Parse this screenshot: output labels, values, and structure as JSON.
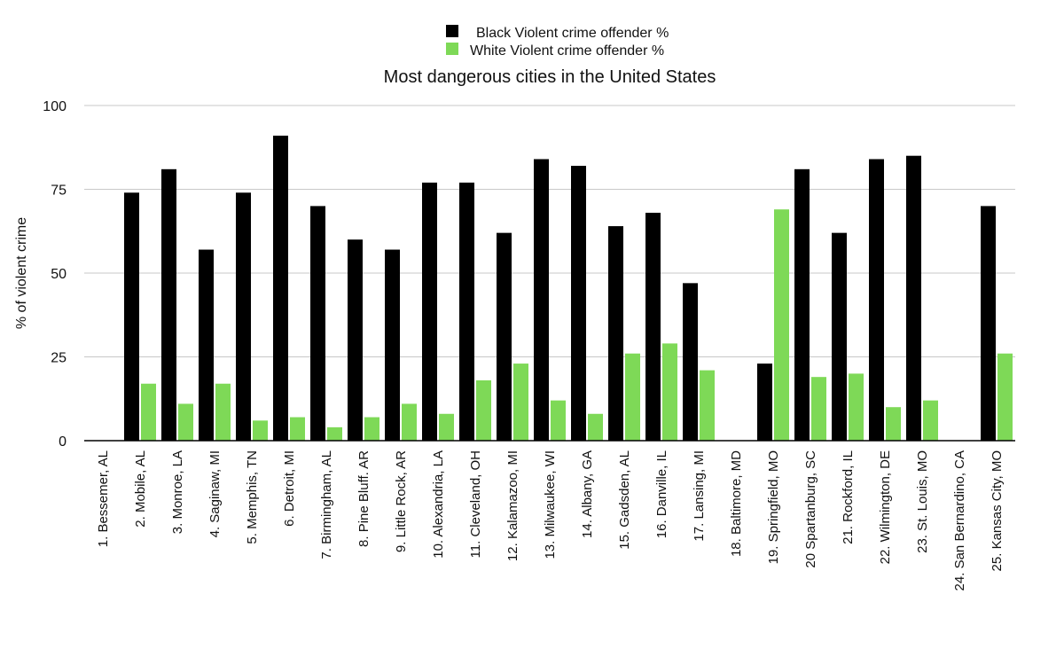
{
  "chart_data": {
    "type": "bar",
    "title": "Most dangerous cities in the United States",
    "xlabel": "",
    "ylabel": "% of violent crime",
    "ylim": [
      0,
      100
    ],
    "yticks": [
      "0",
      "25",
      "50",
      "75",
      "100"
    ],
    "grid": true,
    "legend_position": "top-center",
    "categories": [
      "1. Bessemer, AL",
      "2. Mobile, AL",
      "3. Monroe, LA",
      "4. Saginaw, MI",
      "5. Memphis, TN",
      "6. Detroit, MI",
      "7. Birmingham, AL",
      "8. Pine Bluff. AR",
      "9. Little Rock, AR",
      "10. Alexandria, LA",
      "11. Cleveland, OH",
      "12. Kalamazoo, MI",
      "13. Milwaukee, WI",
      "14. Albany, GA",
      "15. Gadsden, AL",
      "16. Danville, IL",
      "17. Lansing, MI",
      "18. Baltimore, MD",
      "19. Springfield, MO",
      "20 Spartanburg, SC",
      "21. Rockford, IL",
      "22. Wilmington, DE",
      "23. St. Louis, MO",
      "24. San Bernardino, CA",
      "25. Kansas City, MO"
    ],
    "series": [
      {
        "name": "Black Violent crime offender %",
        "color": "#000000",
        "values": [
          0,
          74,
          81,
          57,
          74,
          91,
          70,
          60,
          57,
          77,
          77,
          62,
          84,
          82,
          64,
          68,
          47,
          0,
          23,
          81,
          62,
          84,
          85,
          0,
          70
        ]
      },
      {
        "name": "White Violent crime offender %",
        "color": "#7ed957",
        "values": [
          0,
          17,
          11,
          17,
          6,
          7,
          4,
          7,
          11,
          8,
          18,
          23,
          12,
          8,
          26,
          29,
          21,
          0,
          69,
          19,
          20,
          10,
          12,
          0,
          26
        ]
      }
    ]
  }
}
